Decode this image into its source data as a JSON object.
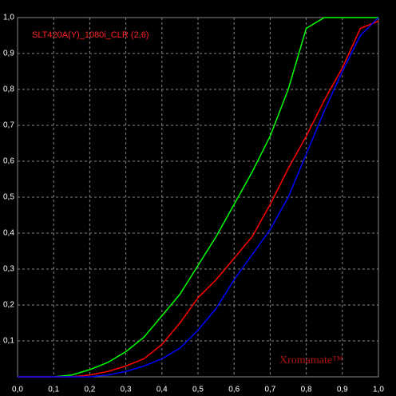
{
  "chart_data": {
    "type": "line",
    "title": "SLT420A(Y)_1080i_CLR (2,6)",
    "watermark": "Xromamate™",
    "x": [
      0,
      0.05,
      0.1,
      0.15,
      0.2,
      0.25,
      0.3,
      0.35,
      0.4,
      0.45,
      0.5,
      0.55,
      0.6,
      0.65,
      0.7,
      0.75,
      0.8,
      0.85,
      0.9,
      0.95,
      1.0
    ],
    "series": [
      {
        "color": "#00ff00",
        "values": [
          0,
          0,
          0,
          0.005,
          0.02,
          0.04,
          0.07,
          0.11,
          0.17,
          0.23,
          0.31,
          0.39,
          0.48,
          0.57,
          0.67,
          0.8,
          0.97,
          1.0,
          1.0,
          1.0,
          1.0
        ]
      },
      {
        "color": "#ff0000",
        "values": [
          0,
          0,
          0,
          0,
          0.005,
          0.015,
          0.03,
          0.05,
          0.09,
          0.15,
          0.22,
          0.27,
          0.33,
          0.39,
          0.48,
          0.58,
          0.67,
          0.77,
          0.86,
          0.97,
          0.99
        ]
      },
      {
        "color": "#0000ff",
        "values": [
          0,
          0,
          0,
          0,
          0,
          0.005,
          0.015,
          0.03,
          0.05,
          0.08,
          0.13,
          0.19,
          0.27,
          0.34,
          0.41,
          0.5,
          0.62,
          0.74,
          0.85,
          0.95,
          1.0
        ]
      }
    ],
    "xlim": [
      0,
      1
    ],
    "ylim": [
      0,
      1
    ],
    "xticks": [
      {
        "value": 0,
        "label": "0,0"
      },
      {
        "value": 0.1,
        "label": "0,1"
      },
      {
        "value": 0.2,
        "label": "0,2"
      },
      {
        "value": 0.3,
        "label": "0,3"
      },
      {
        "value": 0.4,
        "label": "0,4"
      },
      {
        "value": 0.5,
        "label": "0,5"
      },
      {
        "value": 0.6,
        "label": "0,6"
      },
      {
        "value": 0.7,
        "label": "0,7"
      },
      {
        "value": 0.8,
        "label": "0,8"
      },
      {
        "value": 0.9,
        "label": "0,9"
      },
      {
        "value": 1,
        "label": "1,0"
      }
    ],
    "yticks": [
      {
        "value": 0.1,
        "label": "0,1"
      },
      {
        "value": 0.2,
        "label": "0,2"
      },
      {
        "value": 0.3,
        "label": "0,3"
      },
      {
        "value": 0.4,
        "label": "0,4"
      },
      {
        "value": 0.5,
        "label": "0,5"
      },
      {
        "value": 0.6,
        "label": "0,6"
      },
      {
        "value": 0.7,
        "label": "0,7"
      },
      {
        "value": 0.8,
        "label": "0,8"
      },
      {
        "value": 0.9,
        "label": "0,9"
      },
      {
        "value": 1,
        "label": "1,0"
      }
    ],
    "grid": true
  }
}
